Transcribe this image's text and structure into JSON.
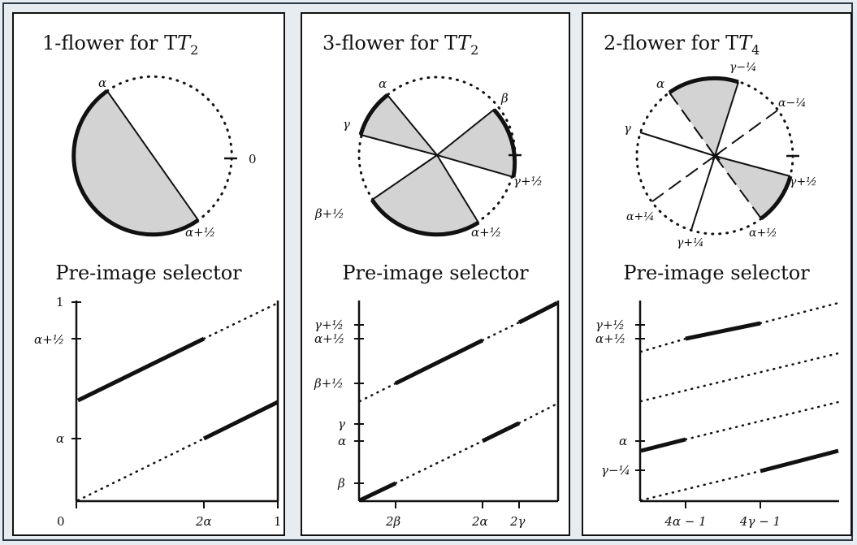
{
  "panels": [
    {
      "title": "1-flower for T",
      "title_sub": "2",
      "circle_labels": [
        "α",
        "0",
        "α+½"
      ],
      "selector_title": "Pre-image selector",
      "y_ticks": [
        "1",
        "α+½",
        "α"
      ],
      "x_ticks": [
        "0",
        "2α",
        "1"
      ]
    },
    {
      "title": "3-flower for T",
      "title_sub": "2",
      "circle_labels": [
        "α",
        "β",
        "γ",
        "γ+½",
        "β+½",
        "α+½"
      ],
      "selector_title": "Pre-image selector",
      "y_ticks": [
        "γ+½",
        "α+½",
        "β+½",
        "γ",
        "α",
        "β"
      ],
      "x_ticks": [
        "2β",
        "2α",
        "2γ"
      ]
    },
    {
      "title": "2-flower for T",
      "title_sub": "4",
      "circle_labels": [
        "α",
        "γ−¼",
        "α−¼",
        "γ",
        "γ+½",
        "α+¼",
        "γ+¼",
        "α+½"
      ],
      "selector_title": "Pre-image selector",
      "y_ticks": [
        "γ+½",
        "α+½",
        "α",
        "γ−¼"
      ],
      "x_ticks": [
        "4α − 1",
        "4γ − 1"
      ]
    }
  ],
  "colors": {
    "sector_fill": "#d3d3d3",
    "stroke": "#111111",
    "page_bg": "#e6ecf0"
  }
}
